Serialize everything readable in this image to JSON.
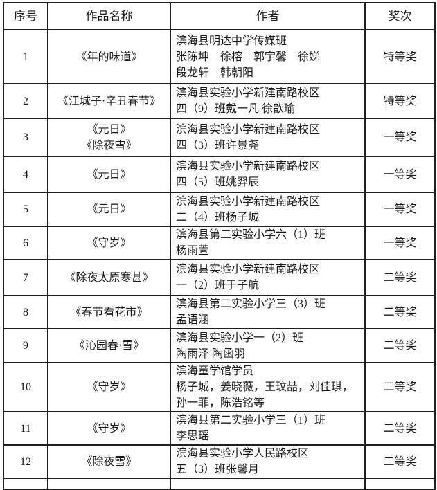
{
  "colors": {
    "background": "#ffffff",
    "border": "#1f1f1f",
    "text": "#1a1a1a"
  },
  "table": {
    "headers": [
      "序号",
      "作品名称",
      "作者",
      "奖次"
    ],
    "rows": [
      {
        "no": "1",
        "title": [
          "《年的味道》"
        ],
        "author": [
          "滨海县明达中学传媒班",
          "张陈坤　徐榕　郭宇馨　徐娣",
          "段龙轩　韩朝阳"
        ],
        "award": "特等奖"
      },
      {
        "no": "2",
        "title": [
          "《江城子·辛丑春节》"
        ],
        "author": [
          "滨海县实验小学新建南路校区",
          "四（9）班戴一凡 徐歆瑜"
        ],
        "award": "特等奖"
      },
      {
        "no": "3",
        "title": [
          "《元日》",
          "《除夜雪》"
        ],
        "author": [
          "滨海县实验小学新建南路校区",
          "四（3）班许景尧"
        ],
        "award": "一等奖"
      },
      {
        "no": "4",
        "title": [
          "《元日》"
        ],
        "author": [
          "滨海县实验小学新建南路校区",
          "四（5）班姚羿辰"
        ],
        "award": "一等奖"
      },
      {
        "no": "5",
        "title": [
          "《元日》"
        ],
        "author": [
          "滨海县实验小学新建南路校区",
          "二（4）班杨子城"
        ],
        "award": "一等奖"
      },
      {
        "no": "6",
        "title": [
          "《守岁》"
        ],
        "author": [
          "滨海县第二实验小学六（1）班",
          "杨雨萱"
        ],
        "award": "一等奖"
      },
      {
        "no": "7",
        "title": [
          "《除夜太原寒甚》"
        ],
        "author": [
          "滨海县实验小学新建南路校区",
          "一（2）班于子航"
        ],
        "award": "二等奖"
      },
      {
        "no": "8",
        "title": [
          "《春节看花市》"
        ],
        "author": [
          "滨海县第二实验小学三（3）班",
          "孟语涵"
        ],
        "award": "二等奖"
      },
      {
        "no": "9",
        "title": [
          "《沁园春·雪》"
        ],
        "author": [
          "滨海县实验小学一（2）班",
          "陶雨泽 陶函羽"
        ],
        "award": "二等奖"
      },
      {
        "no": "10",
        "title": [
          "《守岁》"
        ],
        "author": [
          "滨海童学馆学员",
          "杨子城，姜晓薇，王玟喆，刘佳琪，",
          "孙一菲，陈浩铭等"
        ],
        "award": "二等奖"
      },
      {
        "no": "11",
        "title": [
          "《守岁》"
        ],
        "author": [
          "滨海县第二实验小学三（1）班",
          "李思瑶"
        ],
        "award": "二等奖"
      },
      {
        "no": "12",
        "title": [
          "《除夜雪》"
        ],
        "author": [
          "滨海县实验小学人民路校区",
          "五（3）班张馨月"
        ],
        "award": "二等奖"
      }
    ]
  }
}
